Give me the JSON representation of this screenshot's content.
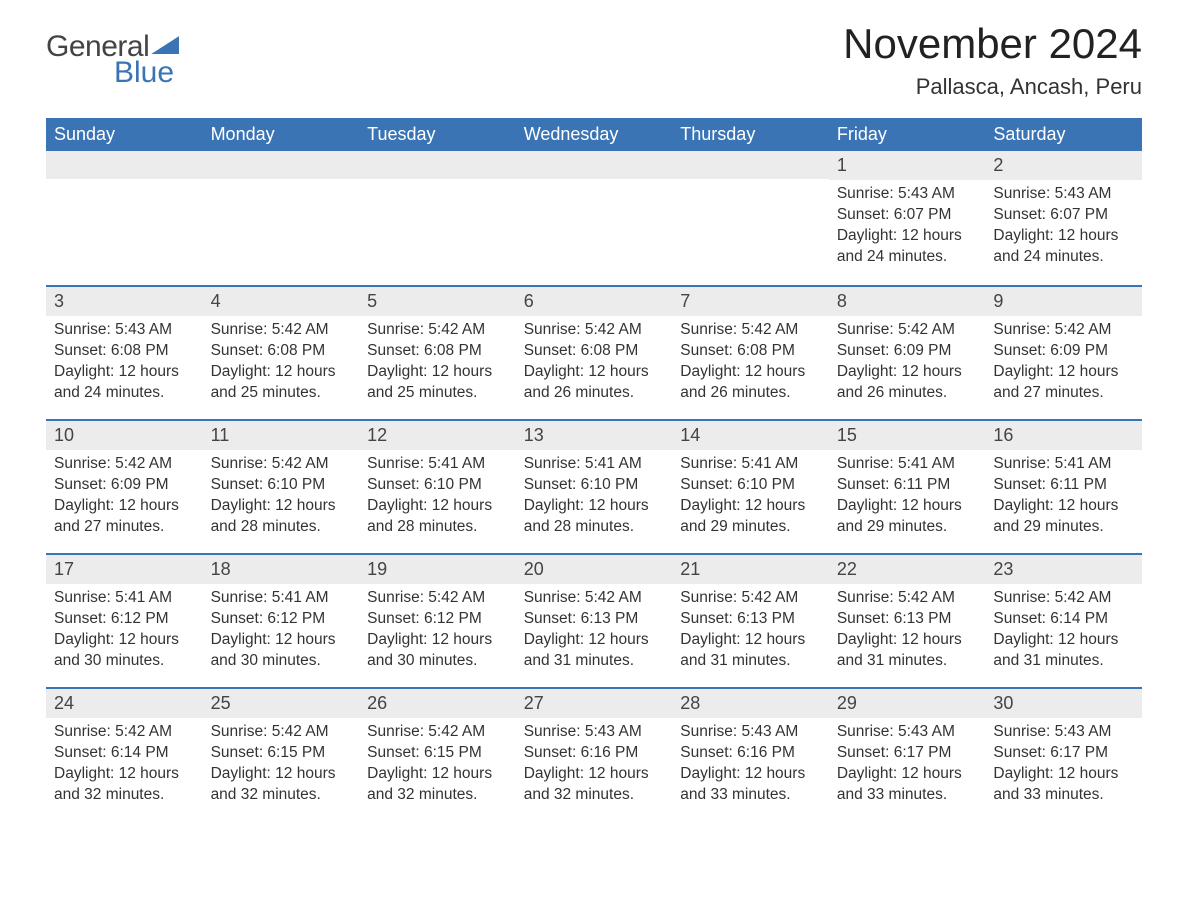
{
  "logo": {
    "word1": "General",
    "word2": "Blue"
  },
  "title": "November 2024",
  "location": "Pallasca, Ancash, Peru",
  "colors": {
    "header_bg": "#3a74b5",
    "header_text": "#ffffff",
    "daynum_bg": "#ececec",
    "border": "#3a74b5",
    "text": "#333333"
  },
  "weekdays": [
    "Sunday",
    "Monday",
    "Tuesday",
    "Wednesday",
    "Thursday",
    "Friday",
    "Saturday"
  ],
  "weeks": [
    [
      {
        "day": "",
        "lines": []
      },
      {
        "day": "",
        "lines": []
      },
      {
        "day": "",
        "lines": []
      },
      {
        "day": "",
        "lines": []
      },
      {
        "day": "",
        "lines": []
      },
      {
        "day": "1",
        "lines": [
          "Sunrise: 5:43 AM",
          "Sunset: 6:07 PM",
          "Daylight: 12 hours and 24 minutes."
        ]
      },
      {
        "day": "2",
        "lines": [
          "Sunrise: 5:43 AM",
          "Sunset: 6:07 PM",
          "Daylight: 12 hours and 24 minutes."
        ]
      }
    ],
    [
      {
        "day": "3",
        "lines": [
          "Sunrise: 5:43 AM",
          "Sunset: 6:08 PM",
          "Daylight: 12 hours and 24 minutes."
        ]
      },
      {
        "day": "4",
        "lines": [
          "Sunrise: 5:42 AM",
          "Sunset: 6:08 PM",
          "Daylight: 12 hours and 25 minutes."
        ]
      },
      {
        "day": "5",
        "lines": [
          "Sunrise: 5:42 AM",
          "Sunset: 6:08 PM",
          "Daylight: 12 hours and 25 minutes."
        ]
      },
      {
        "day": "6",
        "lines": [
          "Sunrise: 5:42 AM",
          "Sunset: 6:08 PM",
          "Daylight: 12 hours and 26 minutes."
        ]
      },
      {
        "day": "7",
        "lines": [
          "Sunrise: 5:42 AM",
          "Sunset: 6:08 PM",
          "Daylight: 12 hours and 26 minutes."
        ]
      },
      {
        "day": "8",
        "lines": [
          "Sunrise: 5:42 AM",
          "Sunset: 6:09 PM",
          "Daylight: 12 hours and 26 minutes."
        ]
      },
      {
        "day": "9",
        "lines": [
          "Sunrise: 5:42 AM",
          "Sunset: 6:09 PM",
          "Daylight: 12 hours and 27 minutes."
        ]
      }
    ],
    [
      {
        "day": "10",
        "lines": [
          "Sunrise: 5:42 AM",
          "Sunset: 6:09 PM",
          "Daylight: 12 hours and 27 minutes."
        ]
      },
      {
        "day": "11",
        "lines": [
          "Sunrise: 5:42 AM",
          "Sunset: 6:10 PM",
          "Daylight: 12 hours and 28 minutes."
        ]
      },
      {
        "day": "12",
        "lines": [
          "Sunrise: 5:41 AM",
          "Sunset: 6:10 PM",
          "Daylight: 12 hours and 28 minutes."
        ]
      },
      {
        "day": "13",
        "lines": [
          "Sunrise: 5:41 AM",
          "Sunset: 6:10 PM",
          "Daylight: 12 hours and 28 minutes."
        ]
      },
      {
        "day": "14",
        "lines": [
          "Sunrise: 5:41 AM",
          "Sunset: 6:10 PM",
          "Daylight: 12 hours and 29 minutes."
        ]
      },
      {
        "day": "15",
        "lines": [
          "Sunrise: 5:41 AM",
          "Sunset: 6:11 PM",
          "Daylight: 12 hours and 29 minutes."
        ]
      },
      {
        "day": "16",
        "lines": [
          "Sunrise: 5:41 AM",
          "Sunset: 6:11 PM",
          "Daylight: 12 hours and 29 minutes."
        ]
      }
    ],
    [
      {
        "day": "17",
        "lines": [
          "Sunrise: 5:41 AM",
          "Sunset: 6:12 PM",
          "Daylight: 12 hours and 30 minutes."
        ]
      },
      {
        "day": "18",
        "lines": [
          "Sunrise: 5:41 AM",
          "Sunset: 6:12 PM",
          "Daylight: 12 hours and 30 minutes."
        ]
      },
      {
        "day": "19",
        "lines": [
          "Sunrise: 5:42 AM",
          "Sunset: 6:12 PM",
          "Daylight: 12 hours and 30 minutes."
        ]
      },
      {
        "day": "20",
        "lines": [
          "Sunrise: 5:42 AM",
          "Sunset: 6:13 PM",
          "Daylight: 12 hours and 31 minutes."
        ]
      },
      {
        "day": "21",
        "lines": [
          "Sunrise: 5:42 AM",
          "Sunset: 6:13 PM",
          "Daylight: 12 hours and 31 minutes."
        ]
      },
      {
        "day": "22",
        "lines": [
          "Sunrise: 5:42 AM",
          "Sunset: 6:13 PM",
          "Daylight: 12 hours and 31 minutes."
        ]
      },
      {
        "day": "23",
        "lines": [
          "Sunrise: 5:42 AM",
          "Sunset: 6:14 PM",
          "Daylight: 12 hours and 31 minutes."
        ]
      }
    ],
    [
      {
        "day": "24",
        "lines": [
          "Sunrise: 5:42 AM",
          "Sunset: 6:14 PM",
          "Daylight: 12 hours and 32 minutes."
        ]
      },
      {
        "day": "25",
        "lines": [
          "Sunrise: 5:42 AM",
          "Sunset: 6:15 PM",
          "Daylight: 12 hours and 32 minutes."
        ]
      },
      {
        "day": "26",
        "lines": [
          "Sunrise: 5:42 AM",
          "Sunset: 6:15 PM",
          "Daylight: 12 hours and 32 minutes."
        ]
      },
      {
        "day": "27",
        "lines": [
          "Sunrise: 5:43 AM",
          "Sunset: 6:16 PM",
          "Daylight: 12 hours and 32 minutes."
        ]
      },
      {
        "day": "28",
        "lines": [
          "Sunrise: 5:43 AM",
          "Sunset: 6:16 PM",
          "Daylight: 12 hours and 33 minutes."
        ]
      },
      {
        "day": "29",
        "lines": [
          "Sunrise: 5:43 AM",
          "Sunset: 6:17 PM",
          "Daylight: 12 hours and 33 minutes."
        ]
      },
      {
        "day": "30",
        "lines": [
          "Sunrise: 5:43 AM",
          "Sunset: 6:17 PM",
          "Daylight: 12 hours and 33 minutes."
        ]
      }
    ]
  ]
}
